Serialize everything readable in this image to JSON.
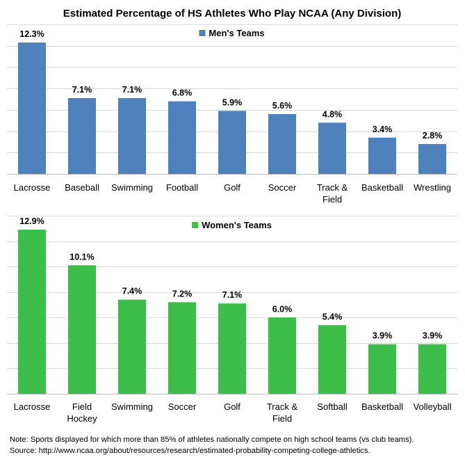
{
  "title": "Estimated Percentage of HS Athletes Who Play NCAA (Any Division)",
  "chart_data": [
    {
      "type": "bar",
      "legend": "Men's Teams",
      "color": "#4F81BD",
      "ylim": [
        0,
        14
      ],
      "grid": true,
      "categories": [
        "Lacrosse",
        "Baseball",
        "Swimming",
        "Football",
        "Golf",
        "Soccer",
        "Track & Field",
        "Basketball",
        "Wrestling"
      ],
      "category_lines": [
        [
          "Lacrosse"
        ],
        [
          "Baseball"
        ],
        [
          "Swimming"
        ],
        [
          "Football"
        ],
        [
          "Golf"
        ],
        [
          "Soccer"
        ],
        [
          "Track &",
          "Field"
        ],
        [
          "Basketball"
        ],
        [
          "Wrestling"
        ]
      ],
      "values": [
        12.3,
        7.1,
        7.1,
        6.8,
        5.9,
        5.6,
        4.8,
        3.4,
        2.8
      ],
      "labels": [
        "12.3%",
        "7.1%",
        "7.1%",
        "6.8%",
        "5.9%",
        "5.6%",
        "4.8%",
        "3.4%",
        "2.8%"
      ]
    },
    {
      "type": "bar",
      "legend": "Women's Teams",
      "color": "#3DBE4A",
      "ylim": [
        0,
        14
      ],
      "grid": true,
      "categories": [
        "Lacrosse",
        "Field Hockey",
        "Swimming",
        "Soccer",
        "Golf",
        "Track & Field",
        "Softball",
        "Basketball",
        "Volleyball"
      ],
      "category_lines": [
        [
          "Lacrosse"
        ],
        [
          "Field",
          "Hockey"
        ],
        [
          "Swimming"
        ],
        [
          "Soccer"
        ],
        [
          "Golf"
        ],
        [
          "Track &",
          "Field"
        ],
        [
          "Softball"
        ],
        [
          "Basketball"
        ],
        [
          "Volleyball"
        ]
      ],
      "values": [
        12.9,
        10.1,
        7.4,
        7.2,
        7.1,
        6.0,
        5.4,
        3.9,
        3.9
      ],
      "labels": [
        "12.9%",
        "10.1%",
        "7.4%",
        "7.2%",
        "7.1%",
        "6.0%",
        "5.4%",
        "3.9%",
        "3.9%"
      ]
    }
  ],
  "notes": {
    "note": "Note: Sports displayed for which more than 85% of athletes nationally compete on high school teams (vs club teams).",
    "source": "Source: http://www.ncaa.org/about/resources/research/estimated-probability-competing-college-athletics."
  }
}
